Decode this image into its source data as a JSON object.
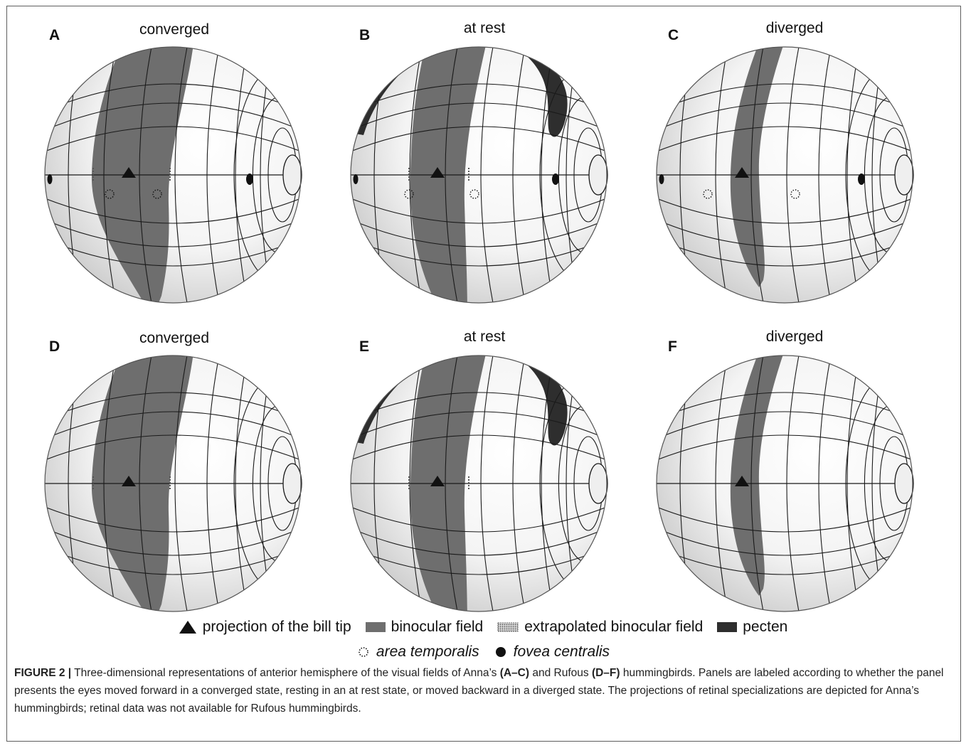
{
  "panels": [
    {
      "letter": "A",
      "title": "converged",
      "state": "converged",
      "pecten": false,
      "retina": true
    },
    {
      "letter": "B",
      "title": "at rest",
      "state": "rest",
      "pecten": true,
      "retina": true
    },
    {
      "letter": "C",
      "title": "diverged",
      "state": "diverged",
      "pecten": false,
      "retina": true
    },
    {
      "letter": "D",
      "title": "converged",
      "state": "converged",
      "pecten": false,
      "retina": false
    },
    {
      "letter": "E",
      "title": "at rest",
      "state": "rest",
      "pecten": true,
      "retina": false
    },
    {
      "letter": "F",
      "title": "diverged",
      "state": "diverged",
      "pecten": false,
      "retina": false
    }
  ],
  "legend": {
    "bill_tip": "projection of the bill tip",
    "binocular": "binocular field",
    "extrapolated": "extrapolated binocular field",
    "pecten": "pecten",
    "area_temporalis": "area temporalis",
    "fovea_centralis": "fovea centralis"
  },
  "caption": {
    "label": "FIGURE 2 |",
    "text1": " Three-dimensional representations of anterior hemisphere of the visual fields of Anna’s ",
    "bold1": "(A–C)",
    "text2": " and Rufous ",
    "bold2": "(D–F)",
    "text3": " hummingbirds. Panels are labeled according to whether the panel presents the eyes moved forward in a converged state, resting in an at rest state, or moved backward in a diverged state. The projections of retinal specializations are depicted for Anna’s hummingbirds; retinal data was not available for Rufous hummingbirds."
  },
  "colors": {
    "binocular": "#6e6e6e",
    "pecten": "#2e2e2e",
    "sphere_light": "#f4f4f4",
    "sphere_dark": "#c4c4c4",
    "grid": "#1a1a1a"
  }
}
